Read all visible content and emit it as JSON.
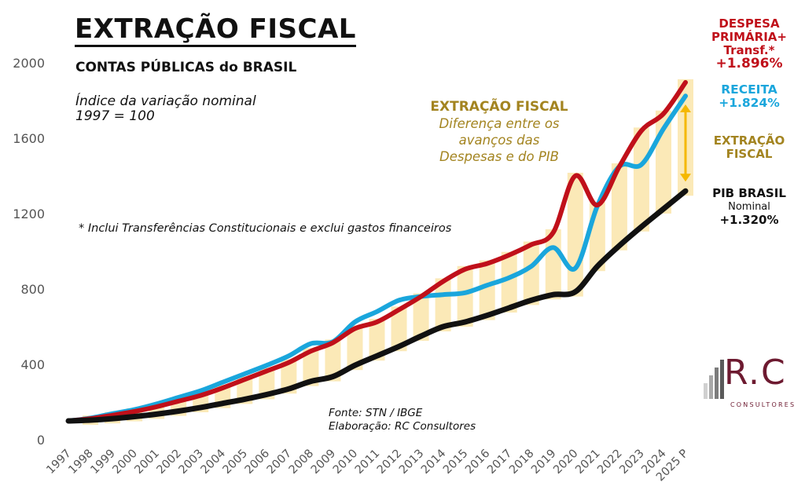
{
  "header": {
    "title": "EXTRAÇÃO FISCAL",
    "subtitle": "CONTAS PÚBLICAS do BRASIL",
    "index_note_line1": "Índice da variação nominal",
    "index_note_line2": "1997 = 100"
  },
  "footnote": "* Inclui Transferências Constitucionais e exclui gastos financeiros",
  "source": {
    "line1": "Fonte: STN / IBGE",
    "line2": "Elaboração: RC Consultores"
  },
  "annotation": {
    "heading": "EXTRAÇÃO FISCAL",
    "line1": "Diferença entre os",
    "line2": "avanços das",
    "line3": "Despesas e do PIB"
  },
  "legend": {
    "despesa": {
      "line1": "DESPESA",
      "line2": "PRIMÁRIA+",
      "line3": "Transf.*",
      "value": "+1.896%",
      "color": "#c0101a"
    },
    "receita": {
      "line1": "RECEITA",
      "value": "+1.824%",
      "color": "#1aa6dc"
    },
    "extracao": {
      "line1": "EXTRAÇÃO",
      "line2": "FISCAL",
      "color": "#a38420"
    },
    "pib": {
      "line1": "PIB BRASIL",
      "line2": "Nominal",
      "value": "+1.320%",
      "color": "#111111"
    }
  },
  "logo": {
    "mark": "R.C",
    "name": "CONSULTORES"
  },
  "chart_data": {
    "type": "line",
    "title": "EXTRAÇÃO FISCAL",
    "subtitle": "CONTAS PÚBLICAS do BRASIL",
    "xlabel": "",
    "ylabel": "Índice da variação nominal (1997 = 100)",
    "ylim": [
      0,
      2000
    ],
    "yticks": [
      0,
      400,
      800,
      1200,
      1600,
      2000
    ],
    "grid": false,
    "legend_position": "right",
    "categories": [
      "1997",
      "1998",
      "1999",
      "2000",
      "2001",
      "2002",
      "2003",
      "2004",
      "2005",
      "2006",
      "2007",
      "2008",
      "2009",
      "2010",
      "2011",
      "2012",
      "2013",
      "2014",
      "2015",
      "2016",
      "2017",
      "2018",
      "2019",
      "2020",
      "2021",
      "2022",
      "2023",
      "2024",
      "2025 P"
    ],
    "series": [
      {
        "name": "Despesa Primária + Transf.*",
        "color": "#c0101a",
        "values": [
          100,
          112,
          130,
          150,
          175,
          205,
          235,
          275,
          320,
          365,
          410,
          470,
          515,
          590,
          625,
          690,
          760,
          840,
          905,
          935,
          980,
          1035,
          1100,
          1400,
          1245,
          1450,
          1640,
          1730,
          1896
        ]
      },
      {
        "name": "Receita",
        "color": "#1aa6dc",
        "values": [
          100,
          115,
          138,
          160,
          190,
          225,
          260,
          305,
          350,
          395,
          445,
          510,
          520,
          625,
          680,
          740,
          760,
          770,
          780,
          820,
          860,
          920,
          1020,
          910,
          1240,
          1450,
          1460,
          1650,
          1824
        ]
      },
      {
        "name": "PIB Brasil Nominal",
        "color": "#111111",
        "values": [
          100,
          104,
          112,
          123,
          136,
          152,
          171,
          193,
          215,
          240,
          270,
          310,
          335,
          395,
          445,
          495,
          550,
          600,
          625,
          660,
          700,
          740,
          770,
          785,
          920,
          1030,
          1130,
          1225,
          1320
        ]
      }
    ],
    "shaded_gap": {
      "name": "Extração Fiscal",
      "between": [
        "Despesa Primária + Transf.*",
        "PIB Brasil Nominal"
      ],
      "color": "#fbe9b7"
    },
    "arrow_color": "#f5b800",
    "annotations": [
      "EXTRAÇÃO FISCAL — Diferença entre os avanços das Despesas e do PIB",
      "* Inclui Transferências Constitucionais e exclui gastos financeiros",
      "Fonte: STN / IBGE",
      "Elaboração: RC Consultores"
    ]
  }
}
